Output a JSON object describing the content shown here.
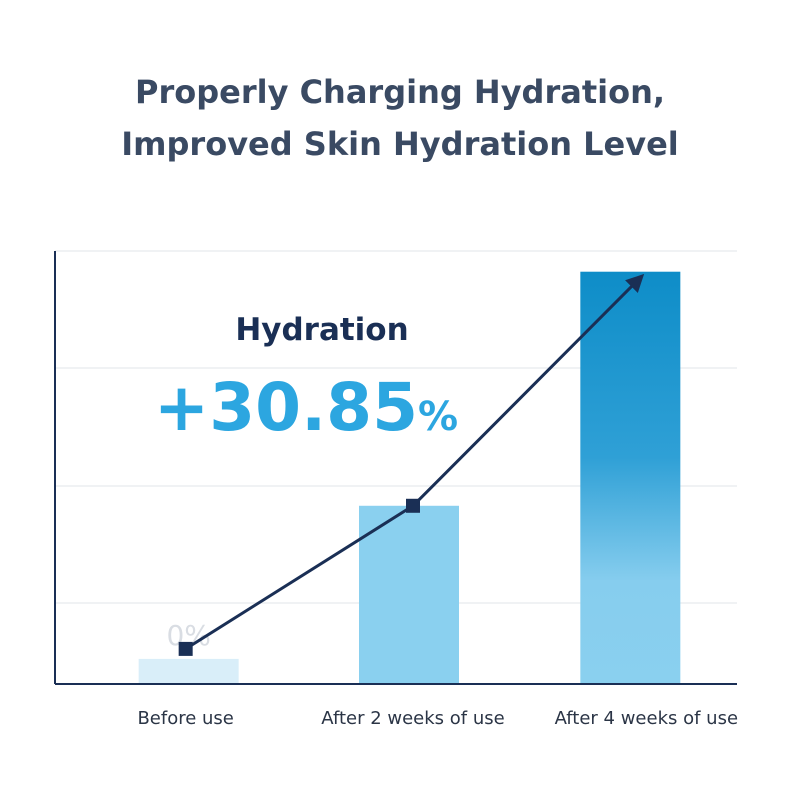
{
  "title": {
    "line1": "Properly Charging Hydration,",
    "line2": "Improved Skin Hydration Level"
  },
  "metric": {
    "label": "Hydration",
    "value": "+30.85",
    "unit": "%"
  },
  "colors": {
    "title": "#3a4a63",
    "bar_light": "#8ad0ef",
    "bar_dark": "#0e8dc8",
    "line": "#1a2f55",
    "accent": "#2ca6e0",
    "grid": "#eceef1",
    "axis": "#1a2f55"
  },
  "chart_data": {
    "type": "bar",
    "categories": [
      "Before use",
      "After 2 weeks of use",
      "After 4 weeks of use"
    ],
    "values": [
      0,
      12.2,
      30.85
    ],
    "data_labels": [
      "0%",
      "",
      ""
    ],
    "ylim": [
      -2,
      32.5
    ],
    "grid": true,
    "trend_line": true,
    "xlabel": "",
    "ylabel": ""
  }
}
